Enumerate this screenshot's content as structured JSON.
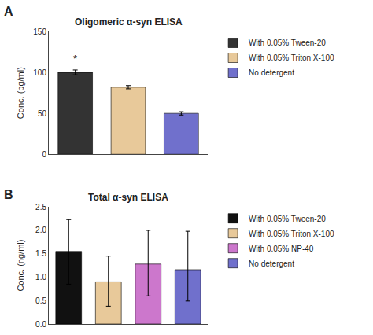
{
  "chart_data": [
    {
      "type": "bar",
      "title": "Oligomeric α-syn ELISA",
      "panel_label": "A",
      "ylabel": "Conc. (pg/ml)",
      "categories": [
        "With 0.05% Tween-20",
        "With 0.05% Triton X-100",
        "No detergent"
      ],
      "values": [
        100,
        82,
        50
      ],
      "errors": [
        3,
        2,
        2
      ],
      "colors": [
        "#333333",
        "#E8C99A",
        "#7070CC"
      ],
      "ylim": [
        0,
        150
      ],
      "yticks": [
        0,
        50,
        100,
        150
      ],
      "grid": false,
      "legend": "right",
      "tick_labels": "y",
      "annotations": [
        {
          "text": "*",
          "category": "With 0.05% Tween-20",
          "y": 108
        }
      ]
    },
    {
      "type": "bar",
      "title": "Total α-syn ELISA",
      "panel_label": "B",
      "ylabel": "Conc. (ng/ml)",
      "categories": [
        "With 0.05% Tween-20",
        "With 0.05% Triton X-100",
        "With 0.05% NP-40",
        "No detergent"
      ],
      "values": [
        1.55,
        0.9,
        1.28,
        1.16
      ],
      "error_low": [
        0.7,
        0.52,
        0.68,
        0.67
      ],
      "error_high": [
        0.68,
        0.55,
        0.72,
        0.82
      ],
      "colors": [
        "#111111",
        "#E8C99A",
        "#CC77CC",
        "#7070CC"
      ],
      "ylim": [
        0,
        2.5
      ],
      "yticks": [
        {
          "value": 0,
          "label": "0.0"
        },
        0.5,
        {
          "value": 1,
          "label": "1.0"
        },
        1.5,
        {
          "value": 2,
          "label": "2.0"
        },
        2.5
      ],
      "grid": false,
      "legend": "right",
      "tick_labels": "y"
    }
  ]
}
